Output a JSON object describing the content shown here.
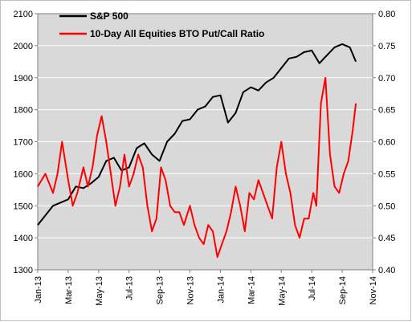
{
  "chart_data": {
    "type": "line",
    "title": "",
    "xlabel": "",
    "ylabel": "",
    "y2label": "",
    "x_tick_labels": [
      "Jan-13",
      "Mar-13",
      "May-13",
      "Jul-13",
      "Sep-13",
      "Nov-13",
      "Jan-14",
      "Mar-14",
      "May-14",
      "Jul-14",
      "Sep-14",
      "Nov-14"
    ],
    "xlim": [
      "2013-01",
      "2014-11"
    ],
    "ylim": [
      1300,
      2100
    ],
    "y_ticks": [
      "1300",
      "1400",
      "1500",
      "1600",
      "1700",
      "1800",
      "1900",
      "2000",
      "2100"
    ],
    "y2lim": [
      0.4,
      0.8
    ],
    "y2_ticks": [
      "0.40",
      "0.45",
      "0.50",
      "0.55",
      "0.60",
      "0.65",
      "0.70",
      "0.75",
      "0.80"
    ],
    "grid": "horizontal",
    "plot_background": "#d9d9d9",
    "legend_position": "top-left",
    "x_unit": "months since Jan-13",
    "series": [
      {
        "name": "S&P 500",
        "axis": "left",
        "color": "#000000",
        "x": [
          0,
          0.5,
          1,
          1.5,
          2,
          2.5,
          3,
          3.5,
          4,
          4.5,
          5,
          5.5,
          6,
          6.5,
          7,
          7.5,
          8,
          8.5,
          9,
          9.5,
          10,
          10.5,
          11,
          11.5,
          12,
          12.5,
          13,
          13.5,
          14,
          14.5,
          15,
          15.5,
          16,
          16.5,
          17,
          17.5,
          18,
          18.5,
          19,
          19.5,
          20,
          20.5,
          20.9
        ],
        "values": [
          1440,
          1470,
          1500,
          1510,
          1520,
          1560,
          1555,
          1570,
          1590,
          1640,
          1650,
          1610,
          1620,
          1680,
          1695,
          1660,
          1640,
          1700,
          1725,
          1765,
          1770,
          1800,
          1810,
          1840,
          1845,
          1760,
          1790,
          1855,
          1870,
          1860,
          1885,
          1900,
          1930,
          1960,
          1965,
          1980,
          1985,
          1945,
          1970,
          1995,
          2005,
          1995,
          1950
        ]
      },
      {
        "name": "10-Day All Equities BTO Put/Call Ratio",
        "axis": "right",
        "color": "#ff0000",
        "x": [
          0,
          0.5,
          1,
          1.3,
          1.6,
          2,
          2.3,
          2.6,
          3,
          3.3,
          3.6,
          3.9,
          4.2,
          4.5,
          4.8,
          5.1,
          5.4,
          5.7,
          6,
          6.3,
          6.6,
          6.9,
          7.2,
          7.5,
          7.8,
          8.1,
          8.4,
          8.7,
          9,
          9.3,
          9.6,
          10,
          10.3,
          10.6,
          10.9,
          11.2,
          11.5,
          11.8,
          12.1,
          12.4,
          12.7,
          13,
          13.3,
          13.6,
          13.9,
          14.2,
          14.5,
          14.8,
          15.1,
          15.4,
          15.7,
          16,
          16.3,
          16.6,
          16.9,
          17.2,
          17.5,
          17.8,
          18.1,
          18.3,
          18.6,
          18.9,
          19.2,
          19.5,
          19.8,
          20.1,
          20.4,
          20.7,
          20.9
        ],
        "values": [
          0.53,
          0.55,
          0.52,
          0.55,
          0.6,
          0.54,
          0.5,
          0.52,
          0.56,
          0.53,
          0.56,
          0.61,
          0.64,
          0.6,
          0.55,
          0.5,
          0.53,
          0.58,
          0.53,
          0.55,
          0.58,
          0.56,
          0.5,
          0.46,
          0.48,
          0.56,
          0.54,
          0.5,
          0.49,
          0.49,
          0.47,
          0.5,
          0.47,
          0.45,
          0.44,
          0.47,
          0.46,
          0.42,
          0.44,
          0.46,
          0.49,
          0.53,
          0.5,
          0.46,
          0.52,
          0.51,
          0.54,
          0.52,
          0.5,
          0.48,
          0.56,
          0.6,
          0.55,
          0.52,
          0.47,
          0.45,
          0.48,
          0.48,
          0.52,
          0.5,
          0.66,
          0.7,
          0.58,
          0.53,
          0.52,
          0.55,
          0.57,
          0.62,
          0.66
        ]
      }
    ]
  }
}
